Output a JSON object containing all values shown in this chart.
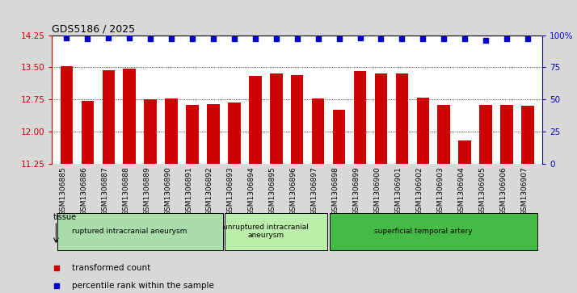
{
  "title": "GDS5186 / 2025",
  "samples": [
    "GSM1306885",
    "GSM1306886",
    "GSM1306887",
    "GSM1306888",
    "GSM1306889",
    "GSM1306890",
    "GSM1306891",
    "GSM1306892",
    "GSM1306893",
    "GSM1306894",
    "GSM1306895",
    "GSM1306896",
    "GSM1306897",
    "GSM1306898",
    "GSM1306899",
    "GSM1306900",
    "GSM1306901",
    "GSM1306902",
    "GSM1306903",
    "GSM1306904",
    "GSM1306905",
    "GSM1306906",
    "GSM1306907"
  ],
  "bar_values": [
    13.52,
    12.72,
    13.43,
    13.47,
    12.75,
    12.78,
    12.62,
    12.65,
    12.68,
    13.3,
    13.35,
    13.32,
    12.77,
    12.52,
    13.42,
    13.35,
    13.35,
    12.8,
    12.62,
    11.8,
    12.62,
    12.62,
    12.6
  ],
  "percentile_values": [
    98,
    97,
    98,
    98,
    97,
    97,
    97,
    97,
    97,
    97,
    97,
    97,
    97,
    97,
    98,
    97,
    97,
    97,
    97,
    97,
    96,
    97,
    97
  ],
  "ylim_left": [
    11.25,
    14.25
  ],
  "ylim_right": [
    0,
    100
  ],
  "yticks_left": [
    11.25,
    12.0,
    12.75,
    13.5,
    14.25
  ],
  "yticks_right": [
    0,
    25,
    50,
    75,
    100
  ],
  "bar_color": "#cc0000",
  "dot_color": "#0000cc",
  "background_color": "#d8d8d8",
  "plot_bg_color": "#ffffff",
  "groups": [
    {
      "label": "ruptured intracranial aneurysm",
      "start": 0,
      "end": 8,
      "color": "#aaddaa"
    },
    {
      "label": "unruptured intracranial\naneurysm",
      "start": 8,
      "end": 13,
      "color": "#bbeeaa"
    },
    {
      "label": "superficial temporal artery",
      "start": 13,
      "end": 23,
      "color": "#44bb44"
    }
  ],
  "legend_bar_label": "transformed count",
  "legend_dot_label": "percentile rank within the sample",
  "tissue_label": "tissue",
  "axis_label_color_left": "#cc0000",
  "axis_label_color_right": "#0000cc"
}
